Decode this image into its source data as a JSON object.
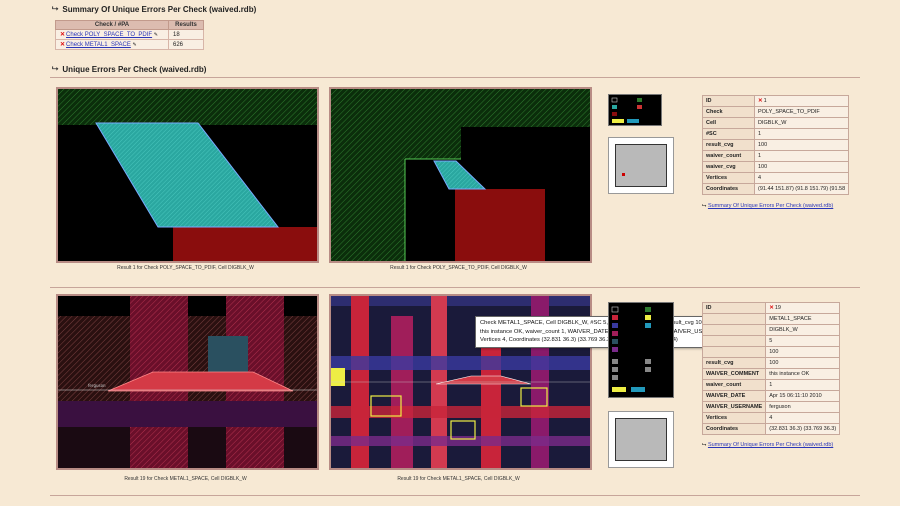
{
  "summary": {
    "title": "Summary Of Unique Errors Per Check (waived.rdb)",
    "columns": [
      "Check / #PA",
      "Results"
    ],
    "rows": [
      {
        "check": "Check POLY_SPACE_TO_PDIF",
        "results": "18"
      },
      {
        "check": "Check METAL1_SPACE",
        "results": "626"
      }
    ]
  },
  "unique": {
    "title": "Unique Errors Per Check (waived.rdb)"
  },
  "section1": {
    "caption_left": "Result 1 for Check POLY_SPACE_TO_PDIF, Cell DIGBLK_W",
    "caption_right": "Result 1 for Check POLY_SPACE_TO_PDIF, Cell DIGBLK_W",
    "attrs": [
      {
        "k": "ID",
        "v": "1"
      },
      {
        "k": "Check",
        "v": "POLY_SPACE_TO_PDIF"
      },
      {
        "k": "Cell",
        "v": "DIGBLK_W"
      },
      {
        "k": "#SC",
        "v": "1"
      },
      {
        "k": "result_cvg",
        "v": "100"
      },
      {
        "k": "waiver_count",
        "v": "1"
      },
      {
        "k": "waiver_cvg",
        "v": "100"
      },
      {
        "k": "Vertices",
        "v": "4"
      },
      {
        "k": "Coordinates",
        "v": "(91.44 151.87) (91.8 151.79) (91.58"
      }
    ],
    "back_link": "Summary Of Unique Errors Per Check (waived.rdb)"
  },
  "section2": {
    "caption_left": "Result 19 for Check METAL1_SPACE, Cell DIGBLK_W",
    "caption_right": "Result 19 for Check METAL1_SPACE, Cell DIGBLK_W",
    "attrs": [
      {
        "k": "ID",
        "v": "19"
      },
      {
        "k": "",
        "v": "METAL1_SPACE"
      },
      {
        "k": "",
        "v": "DIGBLK_W"
      },
      {
        "k": "",
        "v": "5"
      },
      {
        "k": "",
        "v": "100"
      },
      {
        "k": "result_cvg",
        "v": "100"
      },
      {
        "k": "WAIVER_COMMENT",
        "v": "this instance OK"
      },
      {
        "k": "waiver_count",
        "v": "1"
      },
      {
        "k": "WAIVER_DATE",
        "v": "Apr 15 06:11:10 2010"
      },
      {
        "k": "WAIVER_USERNAME",
        "v": "ferguson"
      },
      {
        "k": "Vertices",
        "v": "4"
      },
      {
        "k": "Coordinates",
        "v": "(32.831 36.3) (33.769 36.3)"
      }
    ],
    "back_link": "Summary Of Unique Errors Per Check (waived.rdb)",
    "tooltip": "Check METAL1_SPACE, Cell DIGBLK_W, #SC 5, max_waiver_cvg 100, result_cvg 100, WAIVER_COMMENT this instance OK, waiver_count 1, WAIVER_DATE Apr 15 06:11:10 2010, WAIVER_USERNAME ferguson, Vertices 4, Coordinates (32.831 36.3) (33.769 36.3) (33.54 36.4) (33.06 36.4)"
  },
  "legend1": {
    "items": [
      "P",
      "met1",
      "poly",
      "via1",
      "cvs",
      "pdif"
    ]
  },
  "legend2": {
    "items": [
      "met1",
      "via1",
      "met2",
      "via2",
      "cont",
      "poly",
      "M1_1",
      "M1_2",
      "M1_3",
      "cvs",
      "pdif",
      "ndif"
    ]
  },
  "layout_labels": {
    "ferguson": "ferguson"
  },
  "colors": {
    "accent_link": "#2a36b8",
    "error_x": "#d11111",
    "teal": "#2aa7a0",
    "red": "#8a0d0d"
  }
}
